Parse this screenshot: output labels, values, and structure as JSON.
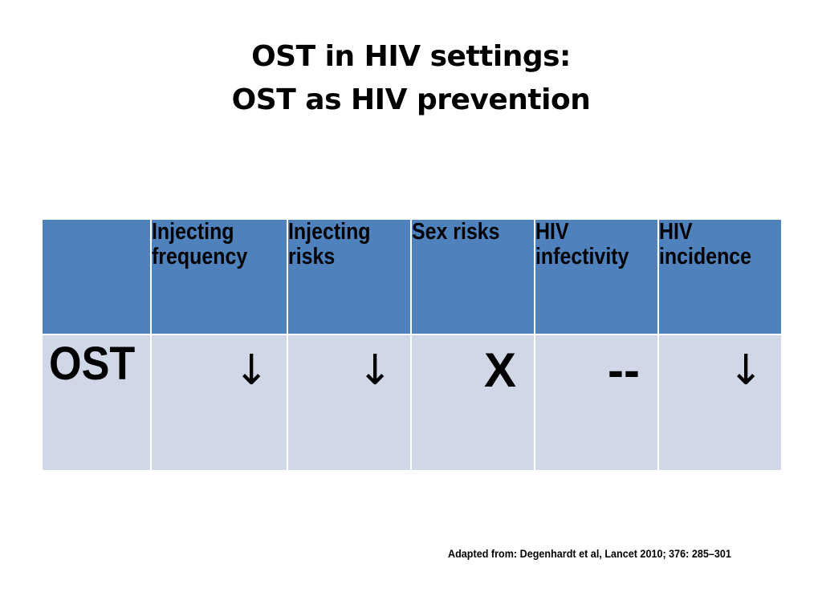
{
  "title": {
    "line1": "OST in HIV settings:",
    "line2": "OST as HIV prevention"
  },
  "table": {
    "headers": [
      "",
      "Injecting\nfrequency",
      "Injecting\nrisks",
      "Sex risks",
      "HIV\ninfectivity",
      "HIV\nincidence"
    ],
    "rows": [
      {
        "label": "OST",
        "values": [
          "↓",
          "↓",
          "X",
          "--",
          "↓"
        ]
      }
    ],
    "colors": {
      "header_bg": "#4f81bd",
      "body_bg": "#d0d8e8",
      "border": "#ffffff"
    }
  },
  "source_note": "Adapted from: Degenhardt et al, Lancet 2010; 376: 285–301"
}
